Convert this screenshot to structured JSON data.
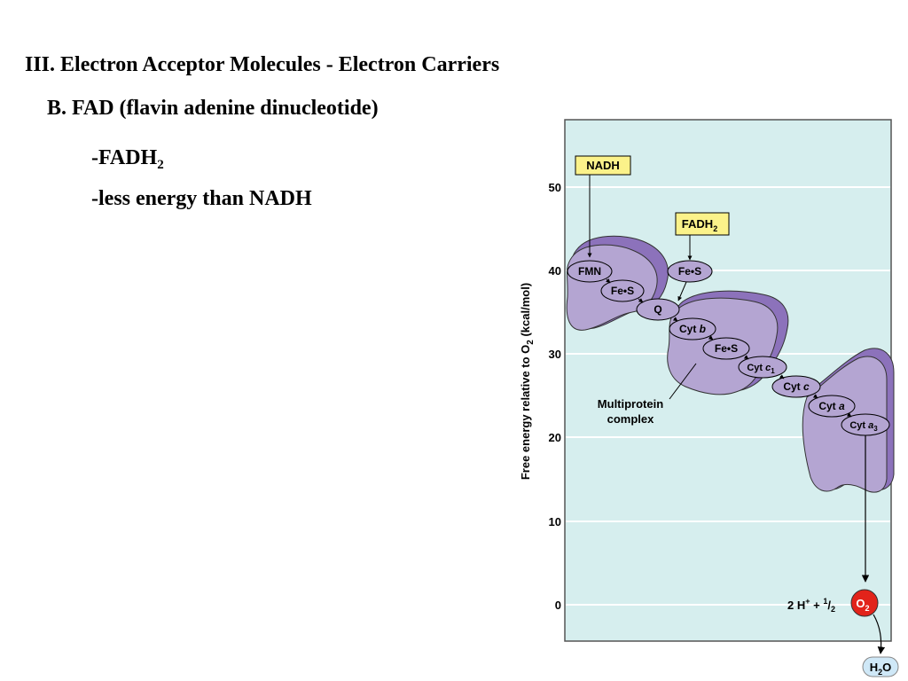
{
  "slide": {
    "heading": "III. Electron Acceptor Molecules - Electron Carriers",
    "subheading": "B. FAD (flavin adenine dinucleotide)",
    "bullet_fadh_prefix": "-FADH",
    "bullet_fadh_sub": "2",
    "bullet_energy": "-less energy than NADH"
  },
  "diagram": {
    "y_axis": {
      "label_prefix": "Free energy relative to O",
      "label_sub": "2",
      "label_suffix": " (kcal/mol)",
      "ticks": [
        "50",
        "40",
        "30",
        "20",
        "10",
        "0"
      ]
    },
    "inputs": {
      "nadh": "NADH",
      "fadh_prefix": "FADH",
      "fadh_sub": "2"
    },
    "carriers": {
      "fmn": "FMN",
      "fes_1": "Fe•S",
      "fes_input": "Fe•S",
      "q": "Q",
      "cyt_b_prefix": "Cyt ",
      "cyt_b_italic": "b",
      "fes_2": "Fe•S",
      "cyt_c1_prefix": "Cyt ",
      "cyt_c1_italic": "c",
      "cyt_c1_sub": "1",
      "cyt_c_prefix": "Cyt ",
      "cyt_c_italic": "c",
      "cyt_a_prefix": "Cyt ",
      "cyt_a_italic": "a",
      "cyt_a3_prefix": "Cyt ",
      "cyt_a3_italic": "a",
      "cyt_a3_sub": "3"
    },
    "annotation_line1": "Multiprotein",
    "annotation_line2": "complex",
    "reaction": {
      "protons": "2 H",
      "protons_sup": "+",
      "plus": " + ",
      "half_num": "1",
      "half_slash": "/",
      "half_den": "2",
      "oxygen": "O",
      "oxygen_sub": "2",
      "water_h": "H",
      "water_sub": "2",
      "water_o": "O"
    },
    "colors": {
      "panel": "#d6eeee",
      "complex_fill": "#b4a5d2",
      "complex_shadow": "#8c72bb",
      "label_box": "#fbf28a",
      "oxygen": "#e2231a",
      "water": "#cfe8f7"
    }
  }
}
